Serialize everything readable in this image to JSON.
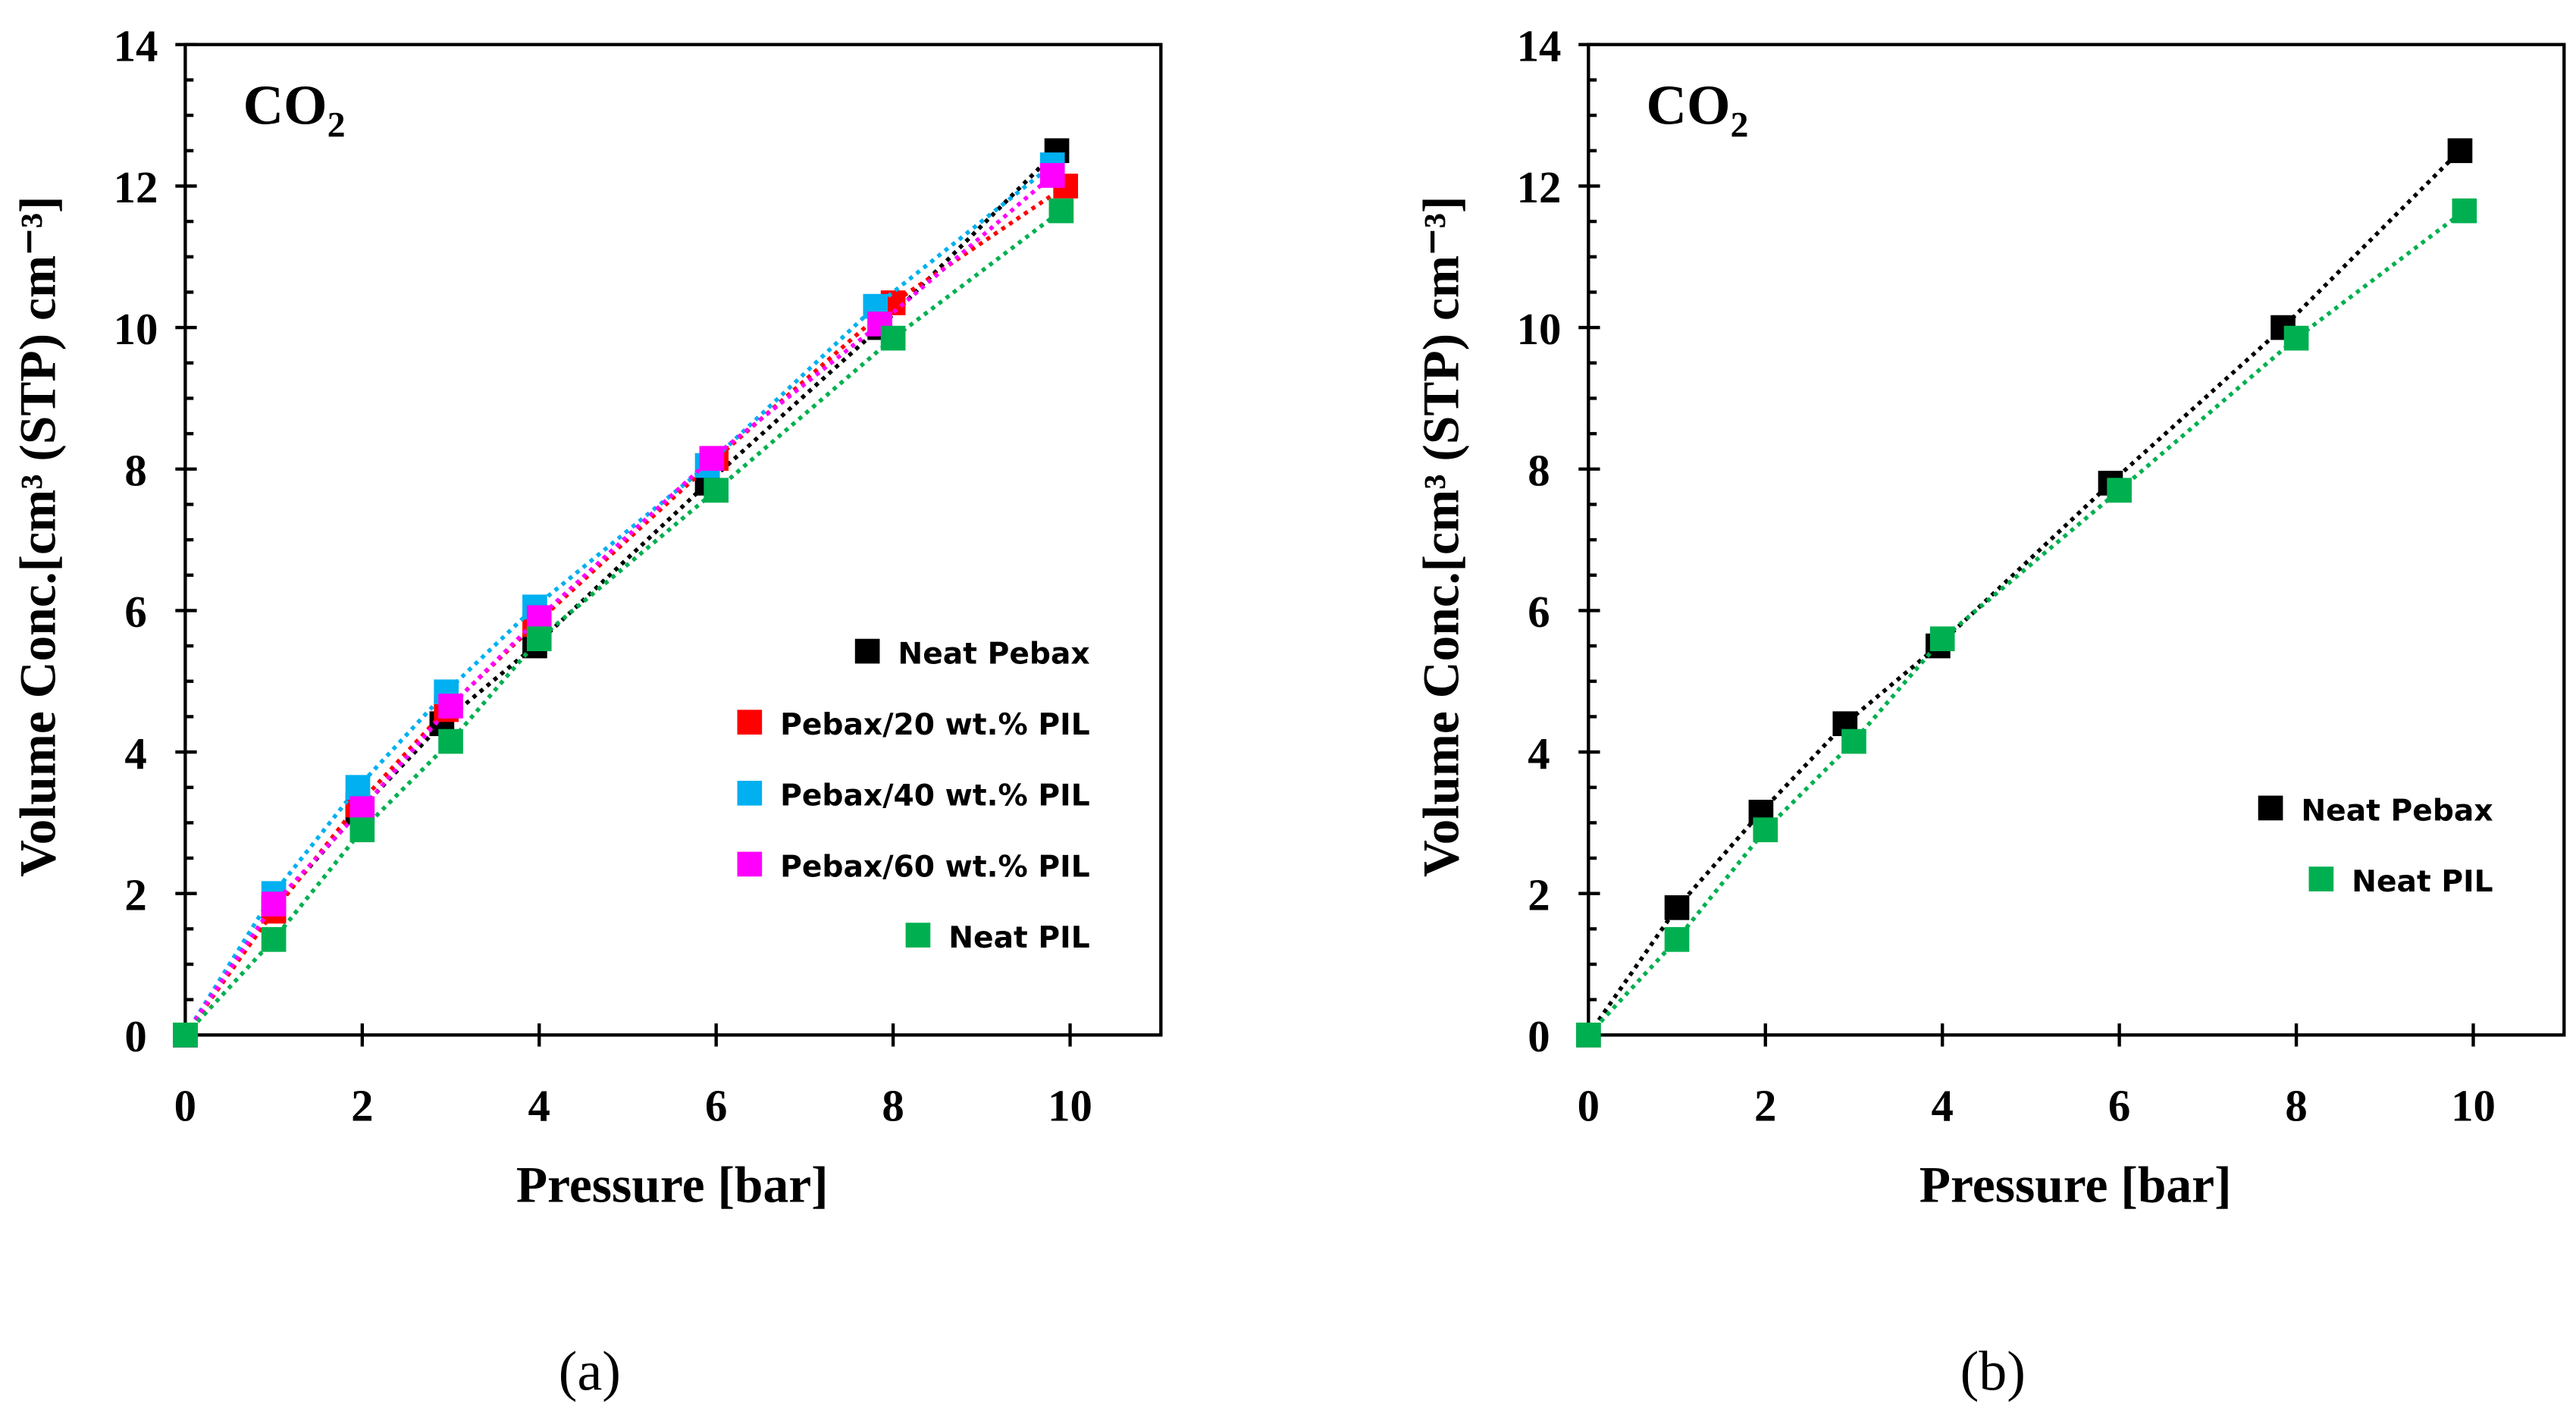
{
  "chart_data": [
    {
      "type": "scatter",
      "panel_label": "(a)",
      "title": "CO",
      "title_sub": "2",
      "xlabel": "Pressure [bar]",
      "ylabel": "Volume Conc.[cm³ (STP) cm⁻³]",
      "xlim": [
        0,
        11
      ],
      "ylim": [
        0,
        14
      ],
      "xticks": [
        "0",
        "2",
        "4",
        "6",
        "8",
        "10"
      ],
      "yticks": [
        "0",
        "2",
        "4",
        "6",
        "8",
        "10",
        "12",
        "14"
      ],
      "legend_position": "bottom-right",
      "grid": false,
      "series": [
        {
          "name": "Neat Pebax",
          "color": "#000000",
          "x": [
            0,
            1,
            1.95,
            2.9,
            3.95,
            5.9,
            7.85,
            9.85
          ],
          "y": [
            0,
            1.8,
            3.15,
            4.4,
            5.5,
            7.8,
            10.0,
            12.5
          ]
        },
        {
          "name": "Pebax/20 wt.% PIL",
          "color": "#ff0000",
          "x": [
            0,
            1,
            1.95,
            2.95,
            3.95,
            6.0,
            8.0,
            9.95
          ],
          "y": [
            0,
            1.75,
            3.25,
            4.6,
            5.8,
            8.15,
            10.35,
            12.0
          ]
        },
        {
          "name": "Pebax/40 wt.% PIL",
          "color": "#00b0f0",
          "x": [
            0,
            1,
            1.95,
            2.95,
            3.95,
            5.9,
            7.8,
            9.8
          ],
          "y": [
            0,
            2.0,
            3.5,
            4.85,
            6.05,
            8.05,
            10.3,
            12.3
          ]
        },
        {
          "name": "Pebax/60 wt.% PIL",
          "color": "#ff00ff",
          "x": [
            0,
            1,
            2.0,
            3.0,
            4.0,
            5.95,
            7.85,
            9.8
          ],
          "y": [
            0,
            1.85,
            3.2,
            4.65,
            5.9,
            8.15,
            10.05,
            12.15
          ]
        },
        {
          "name": "Neat PIL",
          "color": "#00b050",
          "x": [
            0,
            1,
            2.0,
            3.0,
            4.0,
            6.0,
            8.0,
            9.9
          ],
          "y": [
            0,
            1.35,
            2.9,
            4.15,
            5.6,
            7.7,
            9.85,
            11.65
          ]
        }
      ]
    },
    {
      "type": "scatter",
      "panel_label": "(b)",
      "title": "CO",
      "title_sub": "2",
      "xlabel": "Pressure [bar]",
      "ylabel": "Volume Conc.[cm³ (STP) cm⁻³]",
      "xlim": [
        0,
        11
      ],
      "ylim": [
        0,
        14
      ],
      "xticks": [
        "0",
        "2",
        "4",
        "6",
        "8",
        "10"
      ],
      "yticks": [
        "0",
        "2",
        "4",
        "6",
        "8",
        "10",
        "12",
        "14"
      ],
      "legend_position": "bottom-right",
      "grid": false,
      "series": [
        {
          "name": "Neat Pebax",
          "color": "#000000",
          "x": [
            0,
            1,
            1.95,
            2.9,
            3.95,
            5.9,
            7.85,
            9.85
          ],
          "y": [
            0,
            1.8,
            3.15,
            4.4,
            5.5,
            7.8,
            10.0,
            12.5
          ]
        },
        {
          "name": "Neat PIL",
          "color": "#00b050",
          "x": [
            0,
            1,
            2.0,
            3.0,
            4.0,
            6.0,
            8.0,
            9.9
          ],
          "y": [
            0,
            1.35,
            2.9,
            4.15,
            5.6,
            7.7,
            9.85,
            11.65
          ]
        }
      ]
    }
  ]
}
